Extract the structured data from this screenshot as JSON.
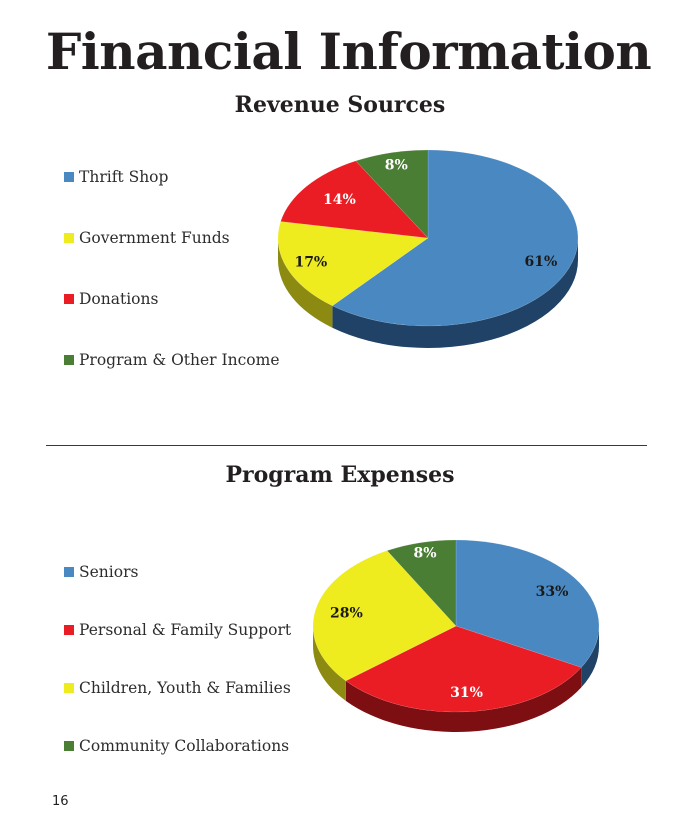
{
  "page": {
    "title": "Financial Information",
    "page_number": "16"
  },
  "chart_data": [
    {
      "type": "pie",
      "title": "Revenue Sources",
      "legend_position": "left",
      "labels": [
        "Thrift Shop",
        "Government Funds",
        "Donations",
        "Program & Other Income"
      ],
      "values": [
        61,
        17,
        14,
        8
      ],
      "value_labels": [
        "61%",
        "17%",
        "14%",
        "8%"
      ],
      "slice_order": [
        0,
        1,
        2,
        3
      ],
      "colors": [
        "#4a88c1",
        "#eeeb1f",
        "#ea1c24",
        "#4b7e35"
      ],
      "side_colors": [
        "#1f4266",
        "#8d8a12",
        "#7d0e12",
        "#274519"
      ],
      "label_colors": [
        "#1a1a1a",
        "#1a1a1a",
        "#ffffff",
        "#ffffff"
      ]
    },
    {
      "type": "pie",
      "title": "Program Expenses",
      "legend_position": "left",
      "labels": [
        "Seniors",
        "Personal & Family Support",
        "Children, Youth & Families",
        "Community Collaborations"
      ],
      "values": [
        33,
        31,
        28,
        8
      ],
      "value_labels": [
        "33%",
        "31%",
        "28%",
        "8%"
      ],
      "slice_order": [
        0,
        1,
        2,
        3
      ],
      "colors": [
        "#4a88c1",
        "#ea1c24",
        "#eeeb1f",
        "#4b7e35"
      ],
      "side_colors": [
        "#1f4266",
        "#7d0e12",
        "#8d8a12",
        "#274519"
      ],
      "label_colors": [
        "#1a1a1a",
        "#ffffff",
        "#1a1a1a",
        "#ffffff"
      ]
    }
  ]
}
